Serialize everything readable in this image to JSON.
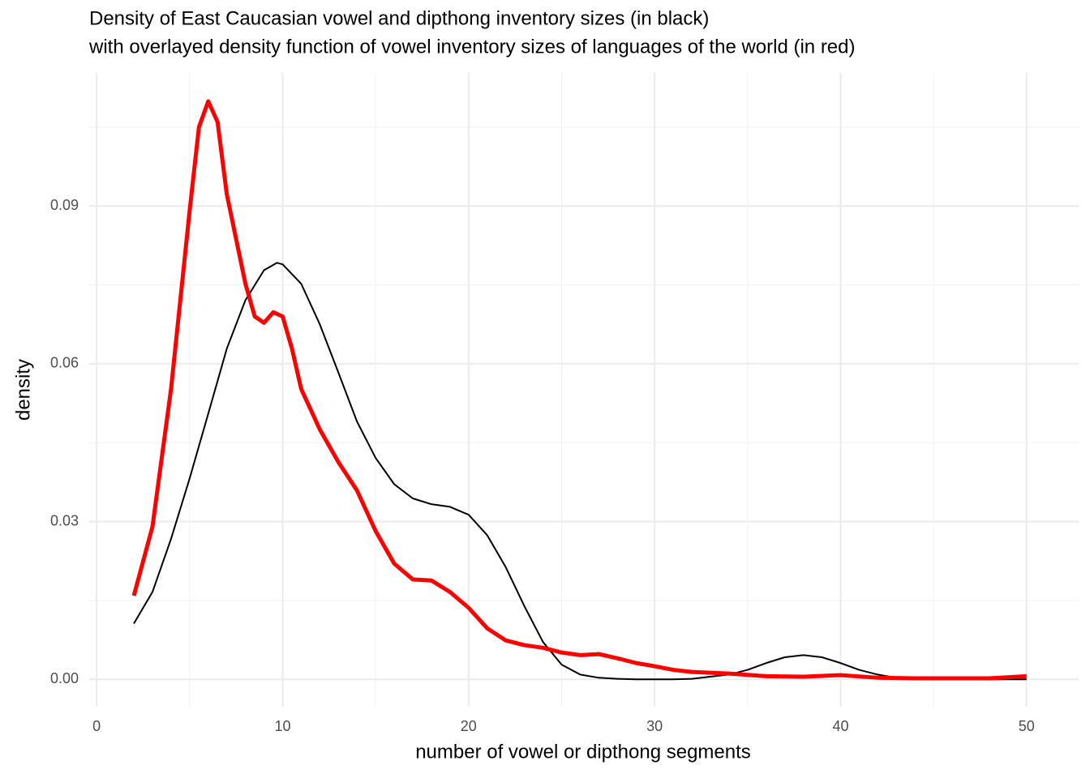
{
  "chart_data": {
    "type": "line",
    "title": "Density of East Caucasian vowel and dipthong inventory sizes (in black)",
    "subtitle": "with overlayed density function of vowel inventory sizes of languages of the world (in red)",
    "x_label": "number of vowel or dipthong segments",
    "y_label": "density",
    "xlim": [
      -0.4,
      52.8
    ],
    "ylim": [
      -0.0052,
      0.1153
    ],
    "xticks": [
      0,
      10,
      20,
      30,
      40,
      50
    ],
    "yticks": [
      {
        "value": 0,
        "label": "0.00"
      },
      {
        "value": 0.03,
        "label": "0.03"
      },
      {
        "value": 0.06,
        "label": "0.06"
      },
      {
        "value": 0.09,
        "label": "0.09"
      }
    ],
    "x_minor_grid": [
      5,
      15,
      25,
      35,
      45
    ],
    "y_minor_grid": [
      0.015,
      0.045,
      0.075,
      0.105
    ],
    "grid": true,
    "series": [
      {
        "name": "East Caucasian",
        "color": "#000000",
        "width": 2,
        "x": [
          2,
          3,
          4,
          5,
          6,
          7,
          8,
          9,
          9.7,
          10,
          11,
          12,
          13,
          14,
          15,
          16,
          17,
          18,
          19,
          20,
          21,
          22,
          23,
          24,
          25,
          26,
          27,
          28,
          29,
          30,
          31,
          32,
          33,
          34,
          35,
          36,
          37,
          38,
          39,
          40,
          41,
          42,
          43,
          44,
          45,
          46,
          47,
          48,
          49,
          50
        ],
        "values": [
          0.0106,
          0.0166,
          0.0267,
          0.0382,
          0.0505,
          0.0629,
          0.0721,
          0.0778,
          0.0792,
          0.0789,
          0.0752,
          0.0675,
          0.0583,
          0.049,
          0.0421,
          0.0371,
          0.0344,
          0.0333,
          0.0328,
          0.0313,
          0.0274,
          0.0213,
          0.0139,
          0.0071,
          0.0028,
          0.0009,
          0.0003,
          0.0001,
          0,
          0,
          0,
          0.0001,
          0.0005,
          0.0009,
          0.0018,
          0.0031,
          0.0042,
          0.0046,
          0.0042,
          0.0031,
          0.0018,
          0.0009,
          0.0003,
          0.0001,
          0,
          0,
          0,
          0,
          0,
          0
        ]
      },
      {
        "name": "World",
        "color": "#ff0000",
        "width": 5,
        "x": [
          2,
          3,
          4,
          5,
          5.5,
          6,
          6.5,
          7,
          8,
          8.5,
          9,
          9.5,
          10,
          10.5,
          11,
          12,
          13,
          14,
          15,
          16,
          17,
          18,
          19,
          20,
          21,
          22,
          23,
          24,
          25,
          26,
          27,
          28,
          29,
          30,
          31,
          32,
          34,
          36,
          38,
          40,
          42,
          44,
          46,
          48,
          50
        ],
        "values": [
          0.0159,
          0.029,
          0.0552,
          0.0891,
          0.105,
          0.1099,
          0.106,
          0.0922,
          0.0752,
          0.069,
          0.0678,
          0.0698,
          0.069,
          0.0629,
          0.0552,
          0.0475,
          0.0413,
          0.0359,
          0.0282,
          0.022,
          0.019,
          0.0188,
          0.0166,
          0.0136,
          0.0097,
          0.0074,
          0.0065,
          0.006,
          0.0051,
          0.0046,
          0.0048,
          0.004,
          0.0031,
          0.0025,
          0.0018,
          0.0014,
          0.0011,
          0.0006,
          0.0005,
          0.0008,
          0.0003,
          0.0002,
          0.0002,
          0.0002,
          0.0006
        ]
      }
    ]
  }
}
